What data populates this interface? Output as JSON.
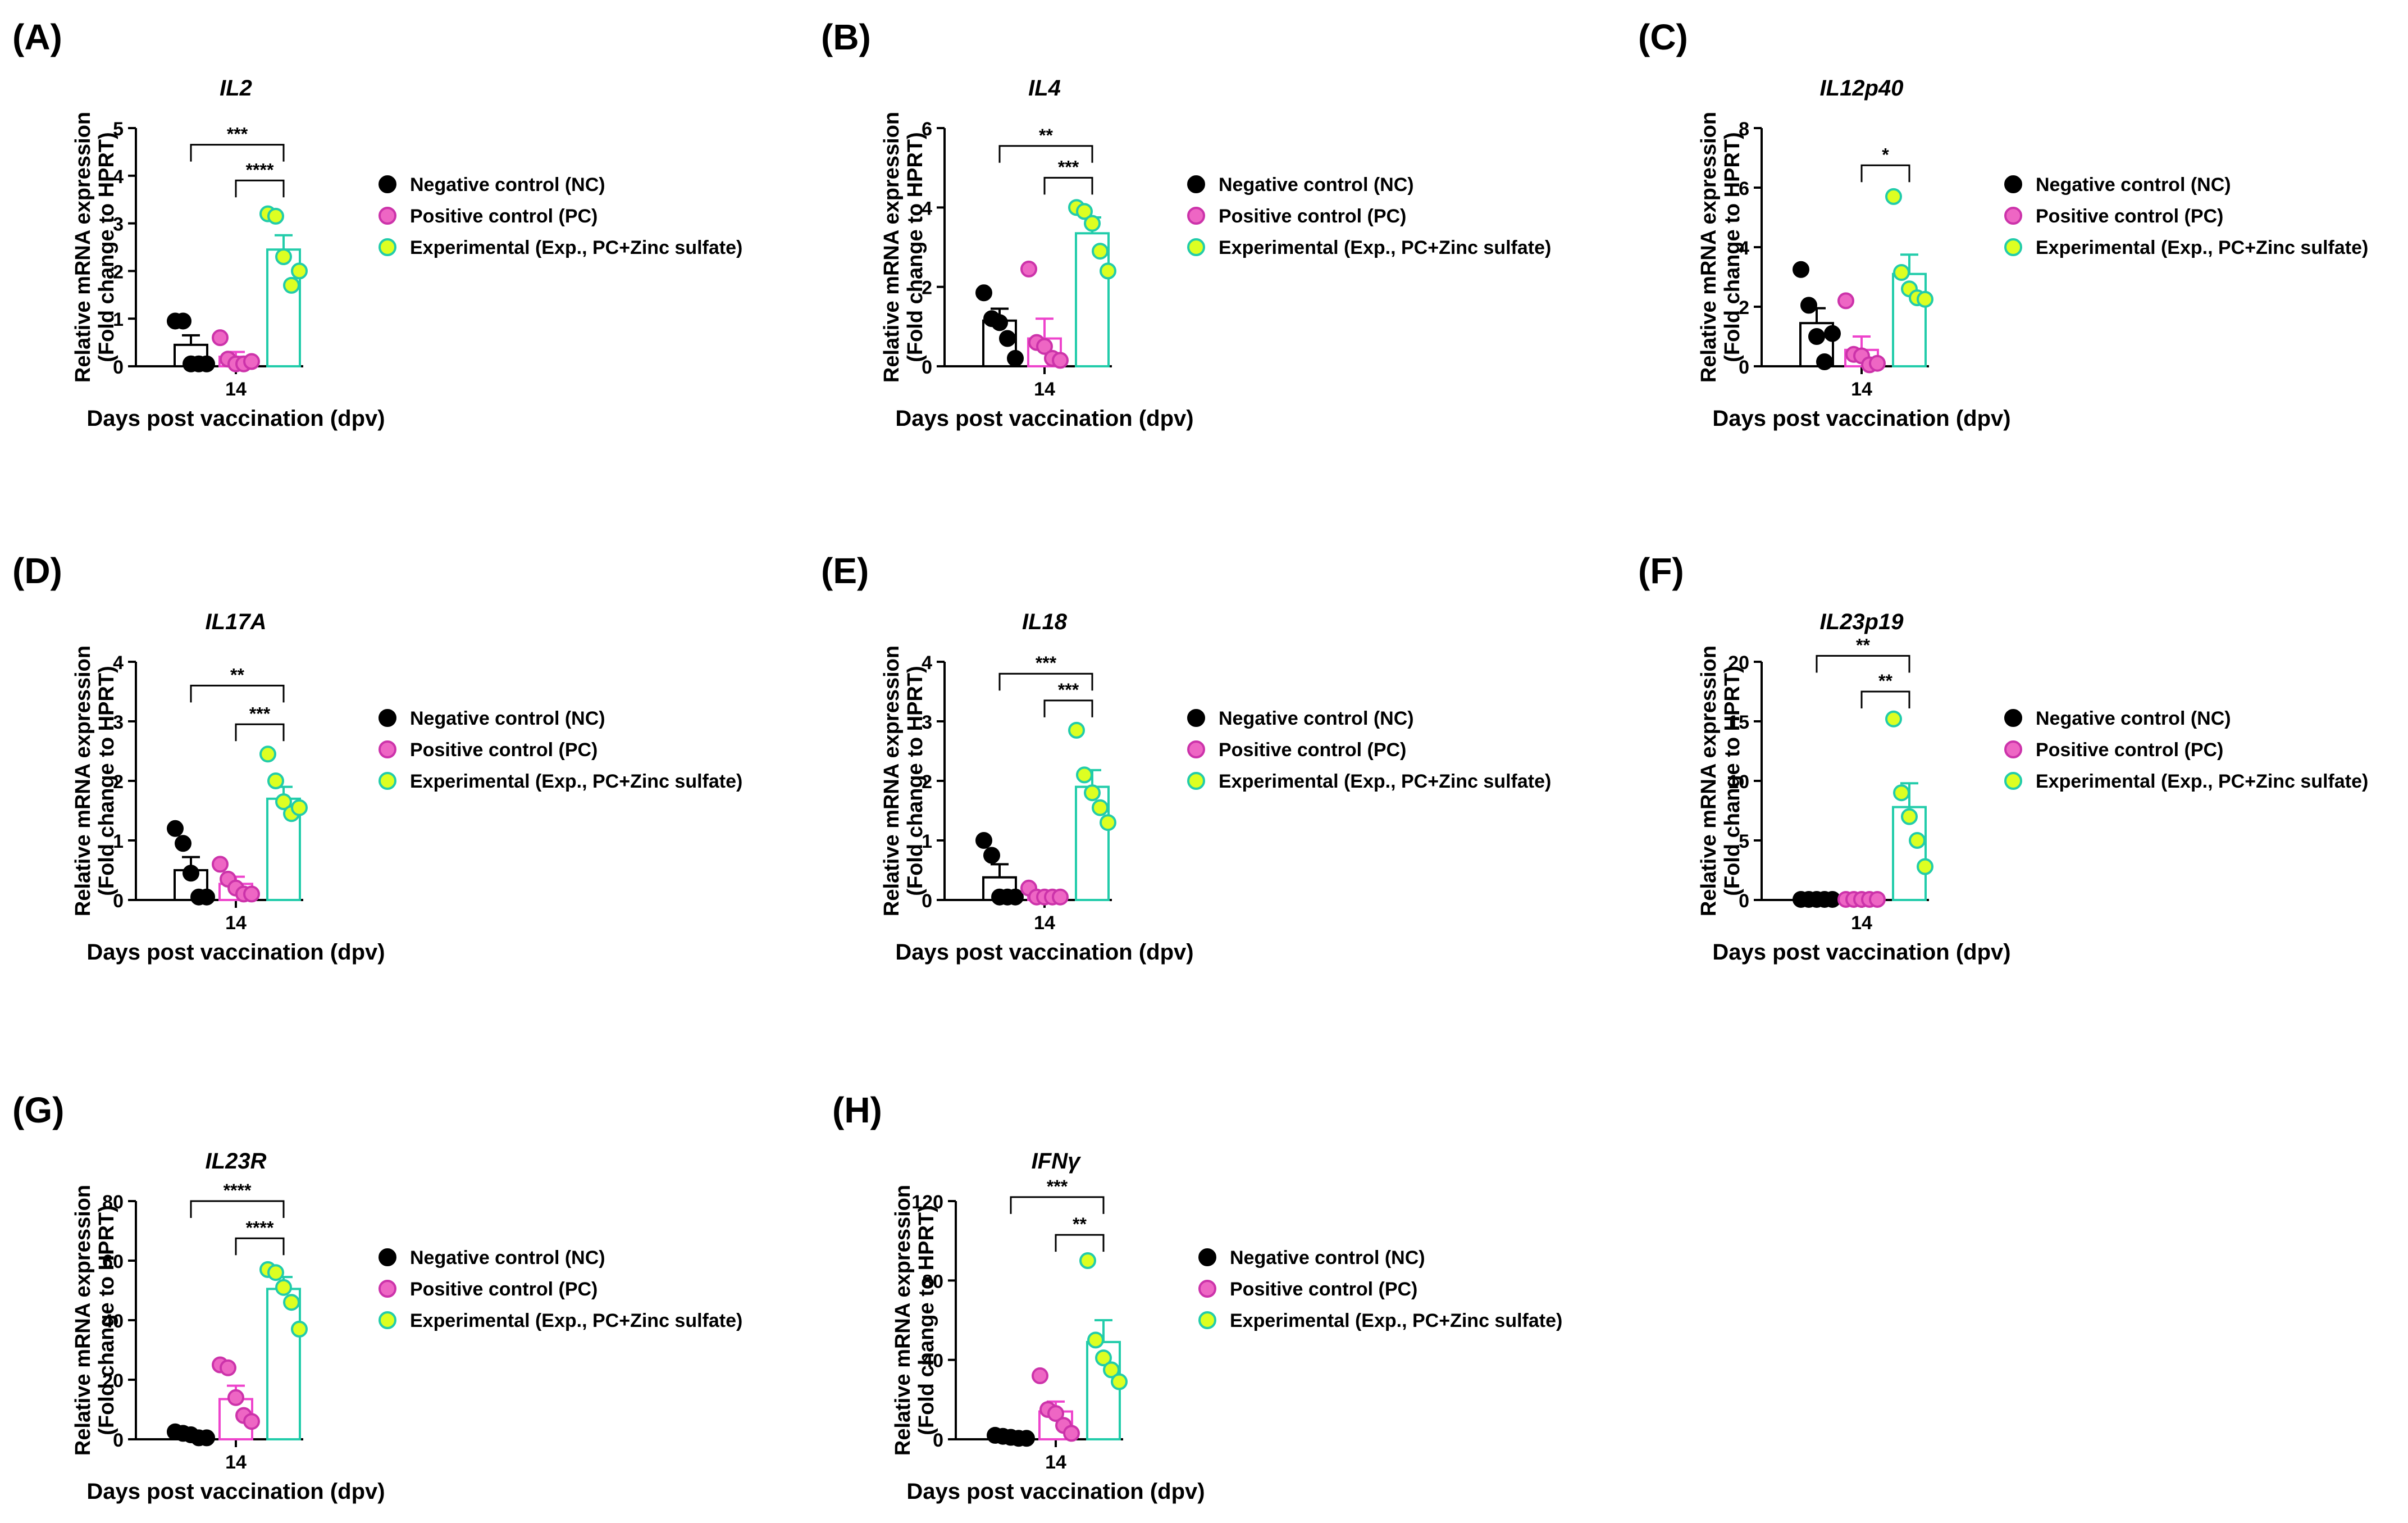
{
  "figure": {
    "xlabel": "Days post vaccination (dpv)",
    "ylabel_line1": "Relative mRNA expression",
    "ylabel_line2": "(Fold change to HPRT)",
    "x_tick": "14"
  },
  "legend": {
    "items": [
      {
        "label": "Negative control (NC)",
        "fill": "#000000",
        "stroke": "#000000"
      },
      {
        "label": "Positive control (PC)",
        "fill": "#ee66c4",
        "stroke": "#cc33aa"
      },
      {
        "label": "Experimental (Exp., PC+Zinc sulfate)",
        "fill": "#ddff22",
        "stroke": "#22ccaa"
      }
    ]
  },
  "colors": {
    "nc_bar": "#000000",
    "pc_bar": "#ee44cc",
    "exp_bar": "#22ccaa",
    "nc_point": "#000000",
    "pc_point_fill": "#ee66c4",
    "pc_point_stroke": "#cc33aa",
    "exp_point_fill": "#ddff22",
    "exp_point_stroke": "#22ccaa"
  },
  "chart_data": [
    {
      "panel": "(A)",
      "title": "IL2",
      "type": "bar",
      "categories": [
        "Negative control (NC)",
        "Positive control (PC)",
        "Experimental (Exp., PC+Zinc sulfate)"
      ],
      "ylim": [
        0,
        5
      ],
      "yticks": [
        0,
        1,
        2,
        3,
        4,
        5
      ],
      "series": [
        {
          "name": "Negative control (NC)",
          "mean": 0.45,
          "sem": 0.2,
          "points": [
            0.95,
            0.95,
            0.05,
            0.05,
            0.05
          ]
        },
        {
          "name": "Positive control (PC)",
          "mean": 0.2,
          "sem": 0.1,
          "points": [
            0.6,
            0.15,
            0.05,
            0.05,
            0.1
          ]
        },
        {
          "name": "Experimental (Exp., PC+Zinc sulfate)",
          "mean": 2.45,
          "sem": 0.3,
          "points": [
            3.2,
            3.15,
            2.3,
            1.7,
            2.0
          ]
        }
      ],
      "significance": [
        {
          "label": "***",
          "from": 0,
          "to": 2,
          "y": 4.65
        },
        {
          "label": "****",
          "from": 1,
          "to": 2,
          "y": 3.9
        }
      ]
    },
    {
      "panel": "(B)",
      "title": "IL4",
      "type": "bar",
      "categories": [
        "Negative control (NC)",
        "Positive control (PC)",
        "Experimental (Exp., PC+Zinc sulfate)"
      ],
      "ylim": [
        0,
        6
      ],
      "yticks": [
        0,
        2,
        4,
        6
      ],
      "series": [
        {
          "name": "Negative control (NC)",
          "mean": 1.15,
          "sem": 0.3,
          "points": [
            1.85,
            1.2,
            1.1,
            0.7,
            0.2
          ]
        },
        {
          "name": "Positive control (PC)",
          "mean": 0.7,
          "sem": 0.5,
          "points": [
            2.45,
            0.6,
            0.5,
            0.2,
            0.15
          ]
        },
        {
          "name": "Experimental (Exp., PC+Zinc sulfate)",
          "mean": 3.35,
          "sem": 0.4,
          "points": [
            4.0,
            3.9,
            3.6,
            2.9,
            2.4
          ]
        }
      ],
      "significance": [
        {
          "label": "**",
          "from": 0,
          "to": 2,
          "y": 5.55
        },
        {
          "label": "***",
          "from": 1,
          "to": 2,
          "y": 4.75
        }
      ]
    },
    {
      "panel": "(C)",
      "title": "IL12p40",
      "type": "bar",
      "categories": [
        "Negative control (NC)",
        "Positive control (PC)",
        "Experimental (Exp., PC+Zinc sulfate)"
      ],
      "ylim": [
        0,
        8
      ],
      "yticks": [
        0,
        2,
        4,
        6,
        8
      ],
      "series": [
        {
          "name": "Negative control (NC)",
          "mean": 1.45,
          "sem": 0.5,
          "points": [
            3.25,
            2.05,
            1.0,
            0.15,
            1.1
          ]
        },
        {
          "name": "Positive control (PC)",
          "mean": 0.55,
          "sem": 0.45,
          "points": [
            2.2,
            0.4,
            0.35,
            0.05,
            0.1
          ]
        },
        {
          "name": "Experimental (Exp., PC+Zinc sulfate)",
          "mean": 3.1,
          "sem": 0.65,
          "points": [
            5.7,
            3.15,
            2.6,
            2.3,
            2.25
          ]
        }
      ],
      "significance": [
        {
          "label": "*",
          "from": 1,
          "to": 2,
          "y": 6.75
        }
      ]
    },
    {
      "panel": "(D)",
      "title": "IL17A",
      "type": "bar",
      "categories": [
        "Negative control (NC)",
        "Positive control (PC)",
        "Experimental (Exp., PC+Zinc sulfate)"
      ],
      "ylim": [
        0,
        4
      ],
      "yticks": [
        0,
        1,
        2,
        3,
        4
      ],
      "series": [
        {
          "name": "Negative control (NC)",
          "mean": 0.5,
          "sem": 0.22,
          "points": [
            1.2,
            0.95,
            0.45,
            0.05,
            0.05
          ]
        },
        {
          "name": "Positive control (PC)",
          "mean": 0.27,
          "sem": 0.12,
          "points": [
            0.6,
            0.35,
            0.2,
            0.1,
            0.1
          ]
        },
        {
          "name": "Experimental (Exp., PC+Zinc sulfate)",
          "mean": 1.7,
          "sem": 0.2,
          "points": [
            2.45,
            2.0,
            1.65,
            1.45,
            1.55
          ]
        }
      ],
      "significance": [
        {
          "label": "**",
          "from": 0,
          "to": 2,
          "y": 3.6
        },
        {
          "label": "***",
          "from": 1,
          "to": 2,
          "y": 2.95
        }
      ]
    },
    {
      "panel": "(E)",
      "title": "IL18",
      "type": "bar",
      "categories": [
        "Negative control (NC)",
        "Positive control (PC)",
        "Experimental (Exp., PC+Zinc sulfate)"
      ],
      "ylim": [
        0,
        4
      ],
      "yticks": [
        0,
        1,
        2,
        3,
        4
      ],
      "series": [
        {
          "name": "Negative control (NC)",
          "mean": 0.38,
          "sem": 0.22,
          "points": [
            1.0,
            0.75,
            0.05,
            0.05,
            0.05
          ]
        },
        {
          "name": "Positive control (PC)",
          "mean": 0.08,
          "sem": 0.05,
          "points": [
            0.2,
            0.05,
            0.05,
            0.05,
            0.05
          ]
        },
        {
          "name": "Experimental (Exp., PC+Zinc sulfate)",
          "mean": 1.9,
          "sem": 0.28,
          "points": [
            2.85,
            2.1,
            1.8,
            1.55,
            1.3
          ]
        }
      ],
      "significance": [
        {
          "label": "***",
          "from": 0,
          "to": 2,
          "y": 3.8
        },
        {
          "label": "***",
          "from": 1,
          "to": 2,
          "y": 3.35
        }
      ]
    },
    {
      "panel": "(F)",
      "title": "IL23p19",
      "type": "bar",
      "categories": [
        "Negative control (NC)",
        "Positive control (PC)",
        "Experimental (Exp., PC+Zinc sulfate)"
      ],
      "ylim": [
        0,
        20
      ],
      "yticks": [
        0,
        5,
        10,
        15,
        20
      ],
      "series": [
        {
          "name": "Negative control (NC)",
          "mean": 0.05,
          "sem": 0.02,
          "points": [
            0.05,
            0.05,
            0.05,
            0.05,
            0.05
          ]
        },
        {
          "name": "Positive control (PC)",
          "mean": 0.05,
          "sem": 0.02,
          "points": [
            0.05,
            0.05,
            0.05,
            0.05,
            0.05
          ]
        },
        {
          "name": "Experimental (Exp., PC+Zinc sulfate)",
          "mean": 7.8,
          "sem": 2.0,
          "points": [
            15.2,
            9.0,
            7.0,
            5.0,
            2.8
          ]
        }
      ],
      "significance": [
        {
          "label": "**",
          "from": 0,
          "to": 2,
          "y": 20.5
        },
        {
          "label": "**",
          "from": 1,
          "to": 2,
          "y": 17.5
        }
      ]
    },
    {
      "panel": "(G)",
      "title": "IL23R",
      "type": "bar",
      "categories": [
        "Negative control (NC)",
        "Positive control (PC)",
        "Experimental (Exp., PC+Zinc sulfate)"
      ],
      "ylim": [
        0,
        80
      ],
      "yticks": [
        0,
        20,
        40,
        60,
        80
      ],
      "series": [
        {
          "name": "Negative control (NC)",
          "mean": 1.5,
          "sem": 0.6,
          "points": [
            2.5,
            2.0,
            1.5,
            0.5,
            0.5
          ]
        },
        {
          "name": "Positive control (PC)",
          "mean": 13.5,
          "sem": 4.5,
          "points": [
            25,
            24,
            14,
            8,
            6
          ]
        },
        {
          "name": "Experimental (Exp., PC+Zinc sulfate)",
          "mean": 50.5,
          "sem": 4.0,
          "points": [
            57,
            56,
            51,
            46,
            37
          ]
        }
      ],
      "significance": [
        {
          "label": "****",
          "from": 0,
          "to": 2,
          "y": 80
        },
        {
          "label": "****",
          "from": 1,
          "to": 2,
          "y": 67.5
        }
      ]
    },
    {
      "panel": "(H)",
      "title": "IFNγ",
      "type": "bar",
      "categories": [
        "Negative control (NC)",
        "Positive control (PC)",
        "Experimental (Exp., PC+Zinc sulfate)"
      ],
      "ylim": [
        0,
        120
      ],
      "yticks": [
        0,
        40,
        80,
        120
      ],
      "series": [
        {
          "name": "Negative control (NC)",
          "mean": 1.0,
          "sem": 0.4,
          "points": [
            2,
            1.5,
            1,
            0.5,
            0.5
          ]
        },
        {
          "name": "Positive control (PC)",
          "mean": 14.0,
          "sem": 5.0,
          "points": [
            32,
            15,
            13,
            7,
            3
          ]
        },
        {
          "name": "Experimental (Exp., PC+Zinc sulfate)",
          "mean": 49.0,
          "sem": 11.0,
          "points": [
            90,
            50,
            41,
            35,
            29
          ]
        }
      ],
      "significance": [
        {
          "label": "***",
          "from": 0,
          "to": 2,
          "y": 122
        },
        {
          "label": "**",
          "from": 1,
          "to": 2,
          "y": 103
        }
      ]
    }
  ]
}
